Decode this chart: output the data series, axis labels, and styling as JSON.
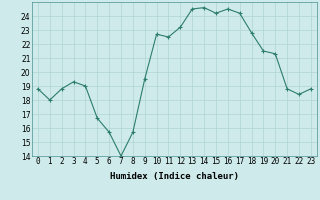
{
  "x": [
    0,
    1,
    2,
    3,
    4,
    5,
    6,
    7,
    8,
    9,
    10,
    11,
    12,
    13,
    14,
    15,
    16,
    17,
    18,
    19,
    20,
    21,
    22,
    23
  ],
  "y": [
    18.8,
    18.0,
    18.8,
    19.3,
    19.0,
    16.7,
    15.7,
    14.0,
    15.7,
    19.5,
    22.7,
    22.5,
    23.2,
    24.5,
    24.6,
    24.2,
    24.5,
    24.2,
    22.8,
    21.5,
    21.3,
    18.8,
    18.4,
    18.8
  ],
  "xlim": [
    -0.5,
    23.5
  ],
  "ylim": [
    14,
    25
  ],
  "yticks": [
    14,
    15,
    16,
    17,
    18,
    19,
    20,
    21,
    22,
    23,
    24
  ],
  "xtick_labels": [
    "0",
    "1",
    "2",
    "3",
    "4",
    "5",
    "6",
    "7",
    "8",
    "9",
    "10",
    "11",
    "12",
    "13",
    "14",
    "15",
    "16",
    "17",
    "18",
    "19",
    "20",
    "21",
    "22",
    "23"
  ],
  "xlabel": "Humidex (Indice chaleur)",
  "line_color": "#2d7d6b",
  "marker": "+",
  "bg_color": "#ceeaea",
  "grid_color": "#b0d4d4",
  "label_fontsize": 6.5,
  "tick_fontsize": 5.5
}
